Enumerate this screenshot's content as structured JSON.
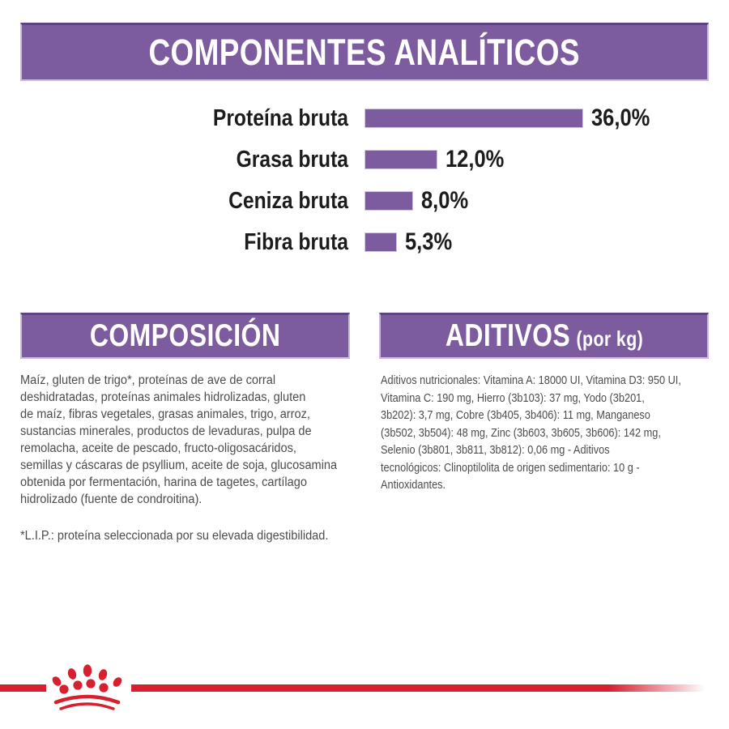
{
  "colors": {
    "purple": "#7c5b9e",
    "purple_border_light": "#cabbdb",
    "purple_border_dark": "#5e4386",
    "brand_red": "#d6202f",
    "heading_text": "#ffffff",
    "body_text": "#4c4c4c",
    "chart_text": "#1c1c1c"
  },
  "header": {
    "title": "COMPONENTES ANALÍTICOS"
  },
  "chart_data": {
    "type": "bar",
    "orientation": "horizontal",
    "title": "COMPONENTES ANALÍTICOS",
    "categories": [
      "Proteína bruta",
      "Grasa bruta",
      "Ceniza bruta",
      "Fibra bruta"
    ],
    "values": [
      36.0,
      12.0,
      8.0,
      5.3
    ],
    "value_labels": [
      "36,0%",
      "12,0%",
      "8,0%",
      "5,3%"
    ],
    "unit": "%",
    "xlim": [
      0,
      36
    ],
    "bar_color": "#7c5b9e",
    "grid": false,
    "legend": false
  },
  "composition": {
    "title": "COMPOSICIÓN",
    "body": "Maíz, gluten de trigo*, proteínas de ave de corral\ndeshidratadas, proteínas animales hidrolizadas, gluten\nde maíz, fibras vegetales, grasas animales, trigo, arroz,\nsustancias minerales, productos de levaduras, pulpa de\nremolacha, aceite de pescado, fructo-oligosacáridos,\nsemillas y cáscaras de psyllium, aceite de soja, glucosamina\nobtenida por fermentación, harina de tagetes, cartílago\nhidrolizado (fuente de condroitina).",
    "footnote": "*L.I.P.: proteína seleccionada por su elevada digestibilidad."
  },
  "additives": {
    "title": "ADITIVOS",
    "title_suffix": "(por kg)",
    "body": "Aditivos nutricionales: Vitamina A: 18000 UI, Vitamina D3: 950 UI,\nVitamina C: 190 mg, Hierro (3b103): 37 mg, Yodo (3b201,\n3b202): 3,7 mg, Cobre (3b405, 3b406): 11 mg, Manganeso\n(3b502, 3b504): 48 mg, Zinc (3b603, 3b605, 3b606): 142 mg,\nSelenio (3b801, 3b811, 3b812): 0,06 mg - Aditivos\ntecnológicos: Clinoptilolita de origen sedimentario: 10 g -\nAntioxidantes.",
    "footnote": ""
  },
  "footer": {
    "logo": "royal-canin-crown",
    "stripe_color": "#d6202f"
  }
}
